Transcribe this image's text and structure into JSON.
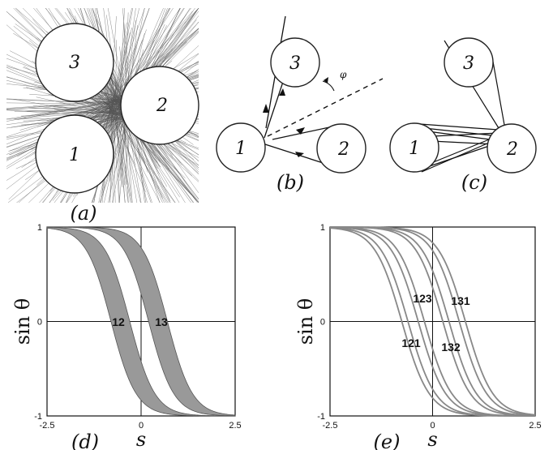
{
  "panels": {
    "a": {
      "label": "(a)"
    },
    "b": {
      "label": "(b)"
    },
    "c": {
      "label": "(c)"
    },
    "d": {
      "label": "(d)"
    },
    "e": {
      "label": "(e)"
    }
  },
  "disks": {
    "one": "1",
    "two": "2",
    "three": "3"
  },
  "angle_symbol": "φ",
  "chart_data": [
    {
      "panel": "(d)",
      "type": "area",
      "xlabel": "s",
      "ylabel": "sin θ",
      "xlim": [
        -2.5,
        2.5
      ],
      "ylim": [
        -1,
        1
      ],
      "xticks": [
        "-2.5",
        "0",
        "2.5"
      ],
      "yticks": [
        "1",
        "0",
        "-1"
      ],
      "grid": false,
      "series": [
        {
          "name": "12",
          "center": -0.55,
          "halfwidth": 0.25,
          "color": "#999999"
        },
        {
          "name": "13",
          "center": 0.45,
          "halfwidth": 0.25,
          "color": "#999999"
        }
      ],
      "annotations": [
        "12",
        "13"
      ]
    },
    {
      "panel": "(e)",
      "type": "line",
      "xlabel": "s",
      "ylabel": "sin θ",
      "xlim": [
        -2.5,
        2.5
      ],
      "ylim": [
        -1,
        1
      ],
      "xticks": [
        "-2.5",
        "0",
        "2.5"
      ],
      "yticks": [
        "1",
        "0",
        "-1"
      ],
      "grid": false,
      "series": [
        {
          "name": "121",
          "center": -0.55,
          "halfwidth": 0.2,
          "color": "#888888"
        },
        {
          "name": "123",
          "center": -0.4,
          "halfwidth": 0.2,
          "color": "#888888"
        },
        {
          "name": "131",
          "center": 0.45,
          "halfwidth": 0.2,
          "color": "#888888"
        },
        {
          "name": "132",
          "center": 0.6,
          "halfwidth": 0.2,
          "color": "#888888"
        }
      ],
      "annotations": [
        "123",
        "131",
        "121",
        "132"
      ]
    }
  ]
}
